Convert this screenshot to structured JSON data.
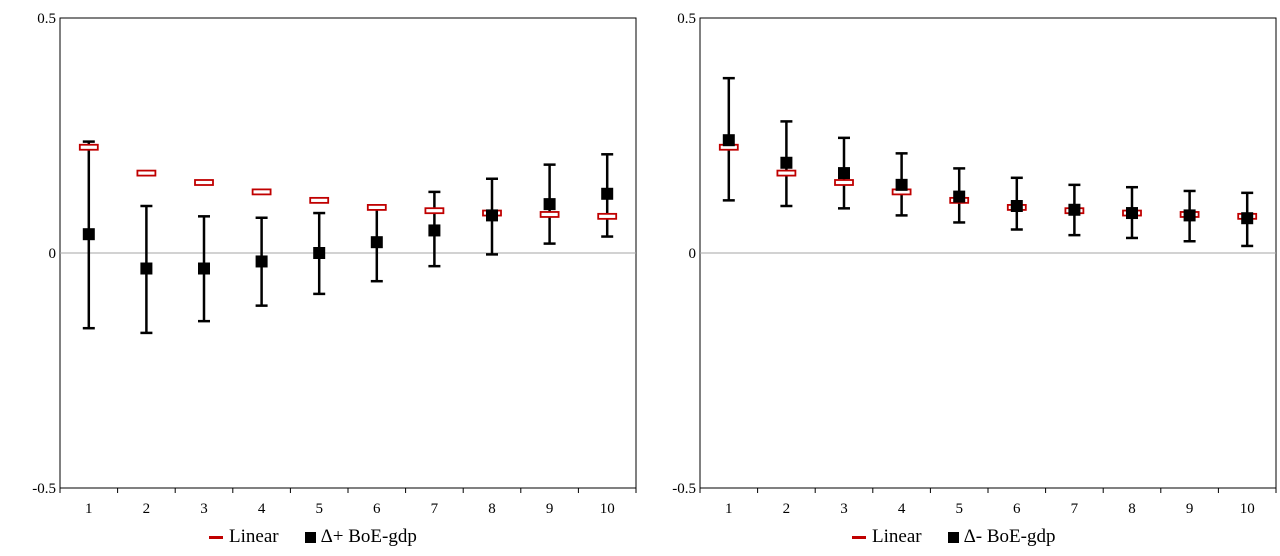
{
  "colors": {
    "linear": "#c00000",
    "series": "#000000",
    "zero_line": "#a6a6a6"
  },
  "chart_data": [
    {
      "type": "scatter",
      "x": [
        1,
        2,
        3,
        4,
        5,
        6,
        7,
        8,
        9,
        10
      ],
      "xticks": [
        "1",
        "2",
        "3",
        "4",
        "5",
        "6",
        "7",
        "8",
        "9",
        "10"
      ],
      "ylim": [
        -0.5,
        0.5
      ],
      "yticks": [
        "0.5",
        "0",
        "-0.5"
      ],
      "series": [
        {
          "name": "Linear",
          "marker": "dash",
          "values": [
            0.225,
            0.17,
            0.15,
            0.13,
            0.112,
            0.097,
            0.09,
            0.085,
            0.082,
            0.078
          ]
        },
        {
          "name": "Δ+ BoE-gdp",
          "marker": "square",
          "values": [
            0.04,
            -0.033,
            -0.033,
            -0.018,
            0.0,
            0.023,
            0.048,
            0.08,
            0.104,
            0.126
          ],
          "ci_low": [
            -0.16,
            -0.17,
            -0.145,
            -0.112,
            -0.087,
            -0.06,
            -0.028,
            -0.003,
            0.02,
            0.035
          ],
          "ci_high": [
            0.237,
            0.1,
            0.078,
            0.075,
            0.085,
            0.1,
            0.13,
            0.158,
            0.188,
            0.21
          ]
        }
      ]
    },
    {
      "type": "scatter",
      "x": [
        1,
        2,
        3,
        4,
        5,
        6,
        7,
        8,
        9,
        10
      ],
      "xticks": [
        "1",
        "2",
        "3",
        "4",
        "5",
        "6",
        "7",
        "8",
        "9",
        "10"
      ],
      "ylim": [
        -0.5,
        0.5
      ],
      "yticks": [
        "0.5",
        "0",
        "-0.5"
      ],
      "series": [
        {
          "name": "Linear",
          "marker": "dash",
          "values": [
            0.225,
            0.17,
            0.15,
            0.13,
            0.112,
            0.097,
            0.09,
            0.085,
            0.082,
            0.078
          ]
        },
        {
          "name": "Δ- BoE-gdp",
          "marker": "square",
          "values": [
            0.24,
            0.192,
            0.17,
            0.145,
            0.12,
            0.1,
            0.092,
            0.085,
            0.08,
            0.074
          ],
          "ci_low": [
            0.112,
            0.1,
            0.095,
            0.08,
            0.065,
            0.05,
            0.038,
            0.032,
            0.025,
            0.015
          ],
          "ci_high": [
            0.372,
            0.28,
            0.245,
            0.212,
            0.18,
            0.16,
            0.145,
            0.14,
            0.132,
            0.128
          ]
        }
      ]
    }
  ]
}
